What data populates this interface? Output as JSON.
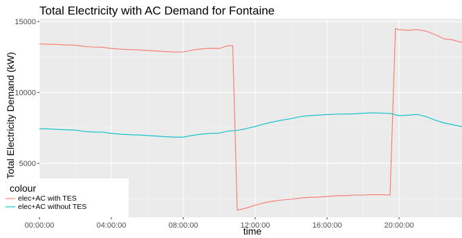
{
  "chart_data": {
    "type": "line",
    "title": "Total Electricity with AC Demand for Fontaine",
    "xlabel": "time",
    "ylabel": "Total Electricity Demand (kW)",
    "xlim": [
      0,
      23.5
    ],
    "ylim": [
      1200,
      15200
    ],
    "x_ticks": [
      0,
      4,
      8,
      12,
      16,
      20
    ],
    "x_tick_labels": [
      "00:00:00",
      "04:00:00",
      "08:00:00",
      "12:00:00",
      "16:00:00",
      "20:00:00"
    ],
    "y_ticks": [
      5000,
      10000,
      15000
    ],
    "y_tick_labels": [
      "5000",
      "10000",
      "15000"
    ],
    "grid": true,
    "panel_background": "#ebebeb",
    "legend": {
      "title": "colour",
      "position": "bottom-left"
    },
    "series": [
      {
        "name": "elec+AC with TES",
        "color": "#f8766d",
        "points": [
          [
            0,
            13420
          ],
          [
            0.5,
            13400
          ],
          [
            1,
            13380
          ],
          [
            1.5,
            13340
          ],
          [
            2,
            13330
          ],
          [
            2.5,
            13240
          ],
          [
            3,
            13200
          ],
          [
            3.5,
            13190
          ],
          [
            4,
            13100
          ],
          [
            4.5,
            13050
          ],
          [
            5,
            13020
          ],
          [
            5.5,
            13000
          ],
          [
            6,
            12960
          ],
          [
            6.5,
            12920
          ],
          [
            7,
            12880
          ],
          [
            7.5,
            12850
          ],
          [
            8,
            12860
          ],
          [
            8.5,
            12980
          ],
          [
            9,
            13070
          ],
          [
            9.5,
            13110
          ],
          [
            10,
            13100
          ],
          [
            10.5,
            13300
          ],
          [
            10.75,
            13290
          ],
          [
            11,
            1700
          ],
          [
            11.5,
            1850
          ],
          [
            12,
            2050
          ],
          [
            12.5,
            2220
          ],
          [
            13,
            2330
          ],
          [
            13.5,
            2420
          ],
          [
            14,
            2470
          ],
          [
            14.5,
            2550
          ],
          [
            15,
            2600
          ],
          [
            15.5,
            2620
          ],
          [
            16,
            2660
          ],
          [
            16.5,
            2720
          ],
          [
            17,
            2720
          ],
          [
            17.5,
            2760
          ],
          [
            18,
            2760
          ],
          [
            18.5,
            2790
          ],
          [
            19,
            2790
          ],
          [
            19.5,
            2760
          ],
          [
            19.8,
            14500
          ],
          [
            20,
            14430
          ],
          [
            20.5,
            14380
          ],
          [
            21,
            14430
          ],
          [
            21.5,
            14320
          ],
          [
            22,
            14080
          ],
          [
            22.5,
            13780
          ],
          [
            23,
            13700
          ],
          [
            23.5,
            13520
          ]
        ]
      },
      {
        "name": "elec+AC without TES",
        "color": "#00bfc4",
        "points": [
          [
            0,
            7450
          ],
          [
            0.5,
            7430
          ],
          [
            1,
            7390
          ],
          [
            1.5,
            7360
          ],
          [
            2,
            7340
          ],
          [
            2.5,
            7250
          ],
          [
            3,
            7210
          ],
          [
            3.5,
            7200
          ],
          [
            4,
            7110
          ],
          [
            4.5,
            7060
          ],
          [
            5,
            7020
          ],
          [
            5.5,
            7000
          ],
          [
            6,
            6960
          ],
          [
            6.5,
            6920
          ],
          [
            7,
            6880
          ],
          [
            7.5,
            6850
          ],
          [
            8,
            6850
          ],
          [
            8.5,
            6970
          ],
          [
            9,
            7060
          ],
          [
            9.5,
            7110
          ],
          [
            10,
            7130
          ],
          [
            10.5,
            7280
          ],
          [
            11,
            7320
          ],
          [
            11.5,
            7450
          ],
          [
            12,
            7600
          ],
          [
            12.5,
            7780
          ],
          [
            13,
            7920
          ],
          [
            13.5,
            8050
          ],
          [
            14,
            8150
          ],
          [
            14.5,
            8300
          ],
          [
            15,
            8360
          ],
          [
            15.5,
            8400
          ],
          [
            16,
            8440
          ],
          [
            16.5,
            8470
          ],
          [
            17,
            8480
          ],
          [
            17.5,
            8490
          ],
          [
            18,
            8530
          ],
          [
            18.5,
            8560
          ],
          [
            19,
            8540
          ],
          [
            19.5,
            8520
          ],
          [
            20,
            8360
          ],
          [
            20.5,
            8400
          ],
          [
            21,
            8450
          ],
          [
            21.5,
            8300
          ],
          [
            22,
            8050
          ],
          [
            22.5,
            7850
          ],
          [
            23,
            7720
          ],
          [
            23.5,
            7580
          ]
        ]
      }
    ]
  }
}
